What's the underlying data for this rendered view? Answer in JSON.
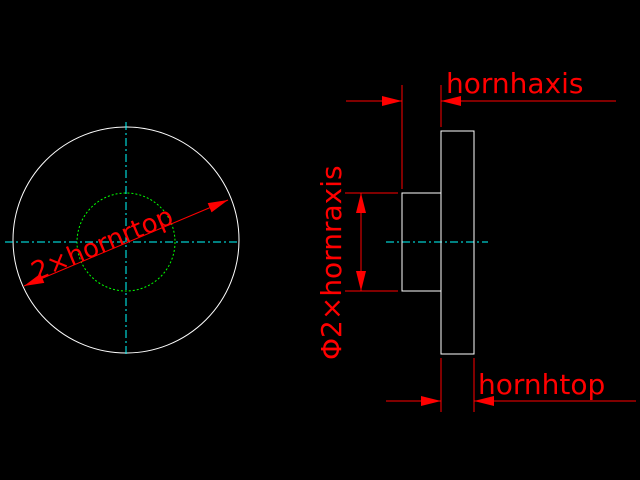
{
  "drawing": {
    "background_color": "#000000",
    "colors": {
      "outline": "#ffffff",
      "centerline": "#00ffff",
      "dimension": "#ff0000",
      "hidden_circle": "#00ff00"
    },
    "annotations": {
      "diameter_left": "2×hornrtop",
      "horn_h_axis": "hornhaxis",
      "horn_r_axis": "Φ2×hornraxis",
      "horn_h_top": "hornhtop"
    }
  }
}
